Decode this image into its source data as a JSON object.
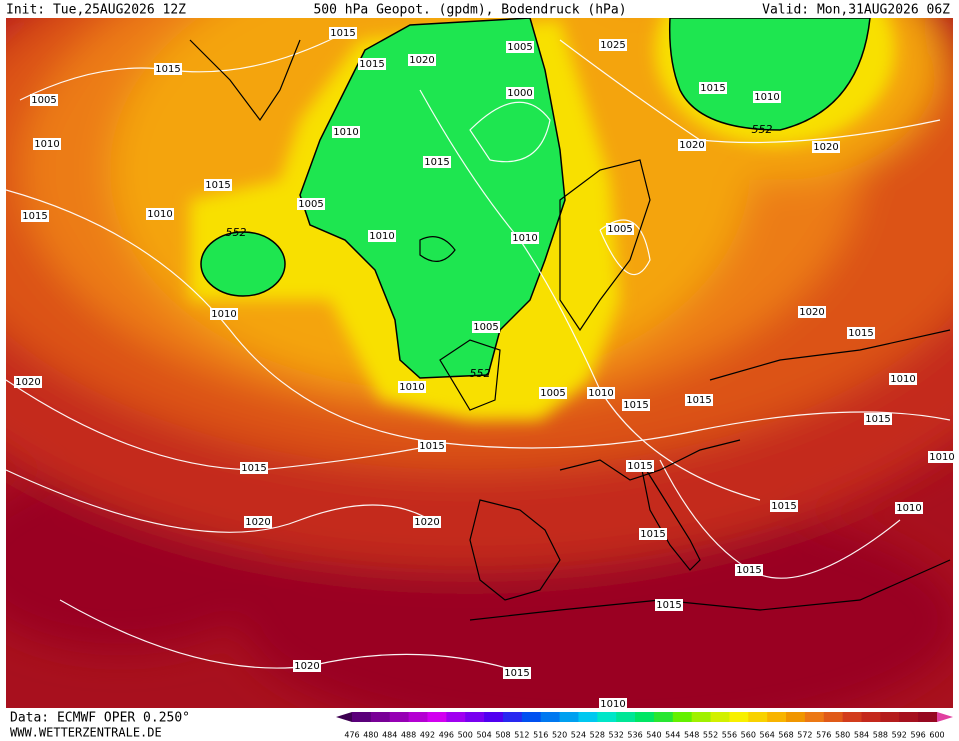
{
  "header": {
    "init": "Init: Tue,25AUG2026 12Z",
    "title": "500 hPa Geopot. (gpdm), Bodendruck (hPa)",
    "valid": "Valid: Mon,31AUG2026 06Z"
  },
  "footer": {
    "source": "Data: ECMWF OPER 0.250°",
    "site": "WWW.WETTERZENTRALE.DE"
  },
  "legend": {
    "levels": [
      476,
      480,
      484,
      488,
      492,
      496,
      500,
      504,
      508,
      512,
      516,
      520,
      524,
      528,
      532,
      536,
      540,
      544,
      548,
      552,
      556,
      560,
      564,
      568,
      572,
      576,
      580,
      584,
      588,
      592,
      596,
      600
    ]
  },
  "contour_labels": [
    "1015",
    "1015",
    "1020",
    "1005",
    "1025",
    "1015",
    "1005",
    "1000",
    "1015",
    "1010",
    "552",
    "1010",
    "1020",
    "1020",
    "1010",
    "1015",
    "1015",
    "1005",
    "1015",
    "1010",
    "552",
    "1010",
    "1010",
    "1005",
    "1010",
    "1005",
    "1020",
    "1015",
    "1020",
    "552",
    "1010",
    "1005",
    "1010",
    "1015",
    "1015",
    "1010",
    "1015",
    "1015",
    "1015",
    "1015",
    "1010",
    "1020",
    "1020",
    "1015",
    "1010",
    "1015",
    "1015",
    "1015",
    "1020",
    "1015",
    "1010"
  ]
}
